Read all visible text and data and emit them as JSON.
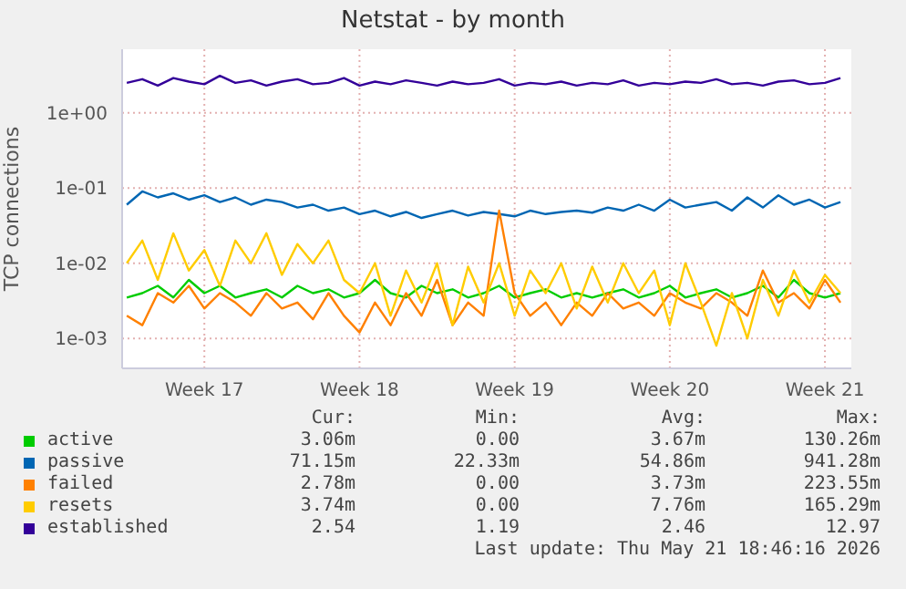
{
  "chart_data": {
    "type": "line",
    "title": "Netstat - by month",
    "ylabel": "TCP connections",
    "log": true,
    "grid": true,
    "legend": "bottom",
    "line_style": "solid",
    "categories": [
      null,
      null,
      null,
      null,
      null,
      "Week 17",
      null,
      null,
      null,
      null,
      null,
      null,
      null,
      null,
      null,
      "Week 18",
      null,
      null,
      null,
      null,
      null,
      null,
      null,
      null,
      null,
      "Week 19",
      null,
      null,
      null,
      null,
      null,
      null,
      null,
      null,
      null,
      "Week 20",
      null,
      null,
      null,
      null,
      null,
      null,
      null,
      null,
      null,
      "Week 21",
      null
    ],
    "ylim": [
      0.0004,
      7
    ],
    "yticks": [
      {
        "value": 0.001,
        "label": "1e-03"
      },
      {
        "value": 0.01,
        "label": "1e-02"
      },
      {
        "value": 0.1,
        "label": "1e-01"
      },
      {
        "value": 1,
        "label": "1e+00"
      }
    ],
    "series": [
      {
        "name": "active",
        "color": "#00cc00",
        "values": [
          0.0035,
          0.004,
          0.005,
          0.0035,
          0.006,
          0.004,
          0.005,
          0.0035,
          0.004,
          0.0045,
          0.0035,
          0.005,
          0.004,
          0.0045,
          0.0035,
          0.004,
          0.006,
          0.004,
          0.0035,
          0.005,
          0.004,
          0.0045,
          0.0035,
          0.004,
          0.005,
          0.0035,
          0.004,
          0.0045,
          0.0035,
          0.004,
          0.0035,
          0.004,
          0.0045,
          0.0035,
          0.004,
          0.005,
          0.0035,
          0.004,
          0.0045,
          0.0035,
          0.004,
          0.005,
          0.0035,
          0.006,
          0.004,
          0.0035,
          0.004
        ]
      },
      {
        "name": "passive",
        "color": "#0066b3",
        "values": [
          0.06,
          0.09,
          0.075,
          0.085,
          0.07,
          0.08,
          0.065,
          0.075,
          0.06,
          0.07,
          0.065,
          0.055,
          0.06,
          0.05,
          0.055,
          0.045,
          0.05,
          0.042,
          0.048,
          0.04,
          0.045,
          0.05,
          0.043,
          0.048,
          0.045,
          0.042,
          0.05,
          0.045,
          0.048,
          0.05,
          0.047,
          0.055,
          0.05,
          0.06,
          0.05,
          0.07,
          0.055,
          0.06,
          0.065,
          0.05,
          0.075,
          0.055,
          0.08,
          0.06,
          0.07,
          0.055,
          0.065
        ]
      },
      {
        "name": "failed",
        "color": "#ff8000",
        "values": [
          0.002,
          0.0015,
          0.004,
          0.003,
          0.005,
          0.0025,
          0.004,
          0.003,
          0.002,
          0.004,
          0.0025,
          0.003,
          0.0018,
          0.004,
          0.002,
          0.0012,
          0.003,
          0.0015,
          0.004,
          0.002,
          0.006,
          0.0015,
          0.003,
          0.002,
          0.05,
          0.004,
          0.002,
          0.003,
          0.0015,
          0.003,
          0.002,
          0.004,
          0.0025,
          0.003,
          0.002,
          0.004,
          0.003,
          0.0025,
          0.004,
          0.003,
          0.002,
          0.008,
          0.003,
          0.004,
          0.0025,
          0.006,
          0.003
        ]
      },
      {
        "name": "resets",
        "color": "#ffcc00",
        "values": [
          0.01,
          0.02,
          0.006,
          0.025,
          0.008,
          0.015,
          0.005,
          0.02,
          0.01,
          0.025,
          0.007,
          0.018,
          0.01,
          0.02,
          0.006,
          0.004,
          0.01,
          0.002,
          0.008,
          0.003,
          0.01,
          0.0015,
          0.009,
          0.003,
          0.01,
          0.002,
          0.008,
          0.004,
          0.01,
          0.0025,
          0.009,
          0.003,
          0.01,
          0.004,
          0.008,
          0.0015,
          0.01,
          0.003,
          0.0008,
          0.004,
          0.001,
          0.006,
          0.002,
          0.008,
          0.003,
          0.007,
          0.004
        ]
      },
      {
        "name": "established",
        "color": "#330099",
        "values": [
          2.5,
          2.8,
          2.3,
          2.9,
          2.6,
          2.4,
          3.1,
          2.5,
          2.7,
          2.3,
          2.6,
          2.8,
          2.4,
          2.5,
          2.9,
          2.3,
          2.6,
          2.4,
          2.7,
          2.5,
          2.3,
          2.6,
          2.4,
          2.5,
          2.8,
          2.3,
          2.5,
          2.4,
          2.6,
          2.3,
          2.5,
          2.4,
          2.7,
          2.3,
          2.5,
          2.4,
          2.6,
          2.5,
          2.8,
          2.4,
          2.5,
          2.3,
          2.6,
          2.7,
          2.4,
          2.5,
          2.9
        ]
      }
    ],
    "annotations": [
      "Cur:",
      "Min:",
      "Avg:",
      "Max:",
      "3.06m",
      "0.00",
      "3.67m",
      "130.26m",
      "71.15m",
      "22.33m",
      "54.86m",
      "941.28m",
      "2.78m",
      "0.00",
      "3.73m",
      "223.55m",
      "3.74m",
      "0.00",
      "7.76m",
      "165.29m",
      "2.54",
      "1.19",
      "2.46",
      "12.97",
      "Last update: Thu May 21 18:46:16 2026"
    ]
  }
}
